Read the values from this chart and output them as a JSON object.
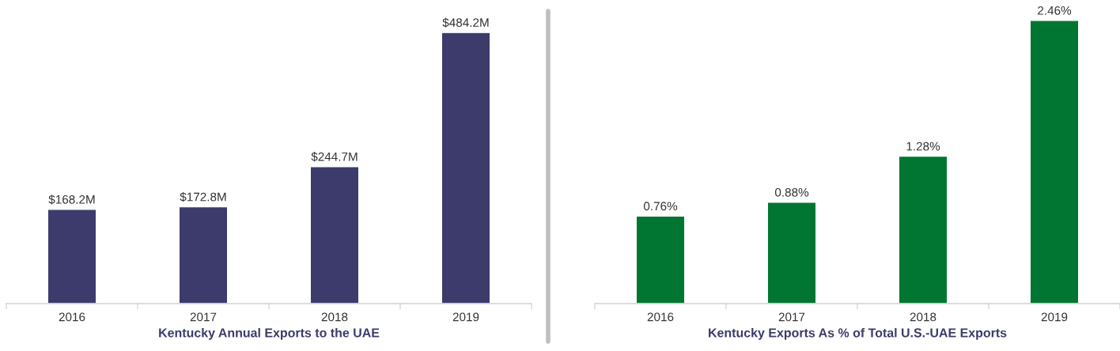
{
  "chart_data": [
    {
      "type": "bar",
      "xlabel": "Kentucky Annual Exports to the UAE",
      "categories": [
        "2016",
        "2017",
        "2018",
        "2019"
      ],
      "values": [
        168.2,
        172.8,
        244.7,
        484.2
      ],
      "color": "#3c3b6b",
      "value_labels": [
        "$168.2M",
        "$172.8M",
        "$244.7M",
        "$484.2M"
      ],
      "grid": false,
      "legend": false,
      "tick_labels": "x"
    },
    {
      "type": "bar",
      "xlabel": "Kentucky Exports As % of Total U.S.-UAE Exports",
      "categories": [
        "2016",
        "2017",
        "2018",
        "2019"
      ],
      "values": [
        0.76,
        0.88,
        1.28,
        2.46
      ],
      "color": "#007632",
      "value_labels": [
        "0.76%",
        "0.88%",
        "1.28%",
        "2.46%"
      ],
      "grid": false,
      "legend": false,
      "tick_labels": "x"
    }
  ]
}
